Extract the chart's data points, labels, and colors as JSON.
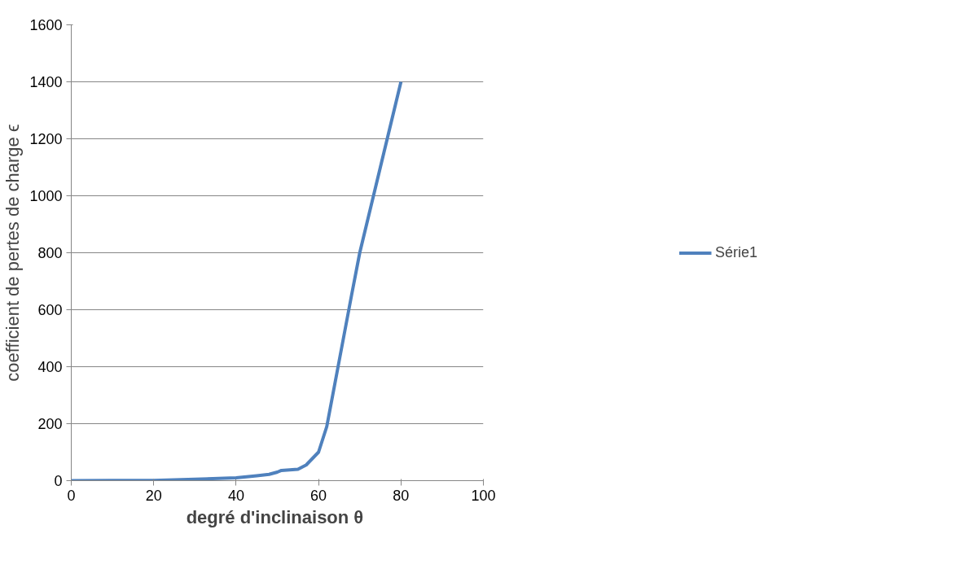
{
  "chart_data": {
    "type": "line",
    "xlabel": "degré d'inclinaison  θ",
    "ylabel": "coefficient de pertes de charge ϵ",
    "x": [
      0,
      10,
      20,
      30,
      40,
      45,
      48,
      50,
      51,
      55,
      57,
      60,
      62,
      65,
      68,
      70,
      75,
      80
    ],
    "series": [
      {
        "name": "Série1",
        "color": "#4f81bd",
        "values": [
          0,
          0.5,
          1,
          5,
          10,
          17,
          22,
          30,
          36,
          40,
          55,
          100,
          190,
          420,
          650,
          800,
          1100,
          1400
        ]
      }
    ],
    "xlim": [
      0,
      100
    ],
    "xticks": [
      0,
      20,
      40,
      60,
      80,
      100
    ],
    "ylim": [
      0,
      1600
    ],
    "yticks": [
      0,
      200,
      400,
      600,
      800,
      1000,
      1200,
      1400,
      1600
    ],
    "grid": "y",
    "legend": "right",
    "marker": "none",
    "line_style": "solid"
  }
}
